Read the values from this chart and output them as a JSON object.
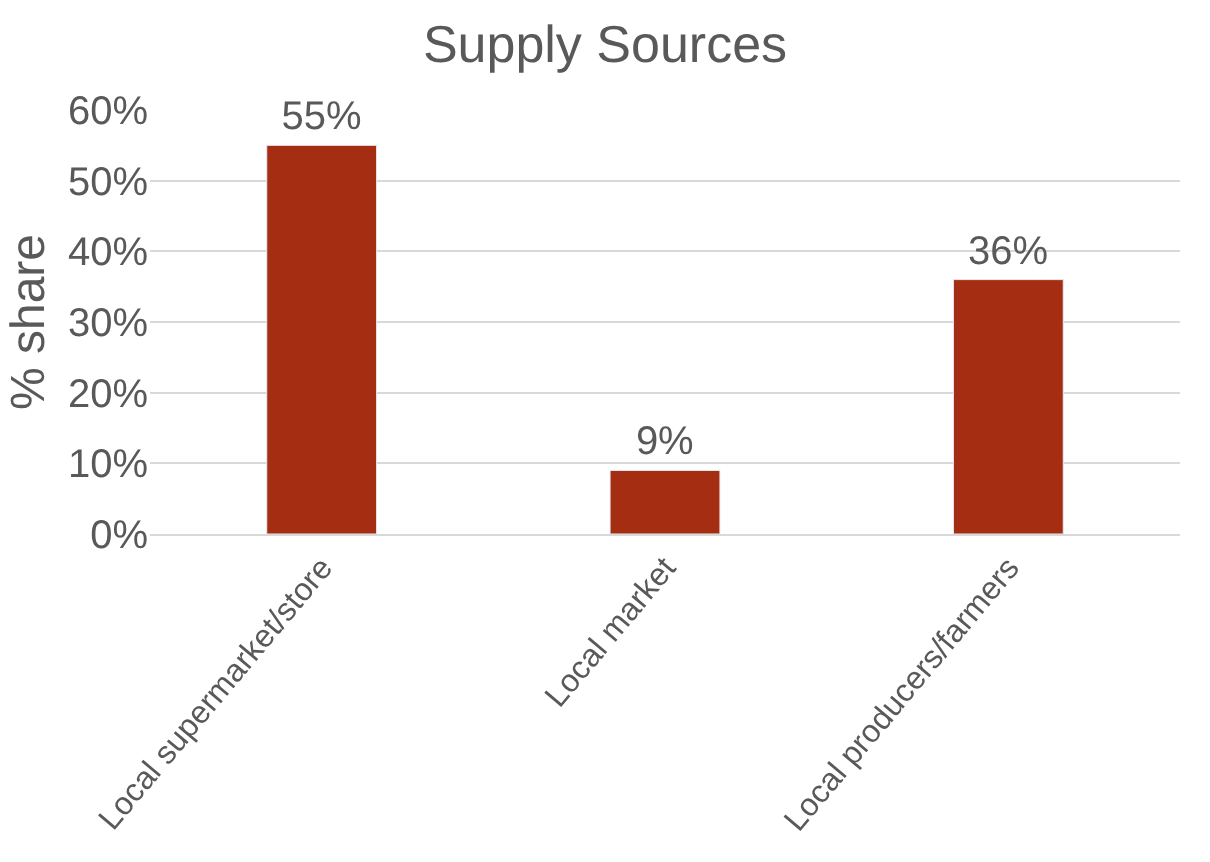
{
  "chart_data": {
    "type": "bar",
    "title": "Supply Sources",
    "ylabel": "% share",
    "categories": [
      "Local supermarket/store",
      "Local market",
      "Local producers/farmers"
    ],
    "values": [
      55,
      9,
      36
    ],
    "value_labels": [
      "55%",
      "9%",
      "36%"
    ],
    "color": "#a52e12",
    "ylim": [
      0,
      60
    ],
    "yticks": [
      {
        "value": 0,
        "label": "0%"
      },
      {
        "value": 10,
        "label": "10%"
      },
      {
        "value": 20,
        "label": "20%"
      },
      {
        "value": 30,
        "label": "30%"
      },
      {
        "value": 40,
        "label": "40%"
      },
      {
        "value": 50,
        "label": "50%"
      },
      {
        "value": 60,
        "label": "60%"
      }
    ],
    "grid": "y",
    "legend": false
  }
}
